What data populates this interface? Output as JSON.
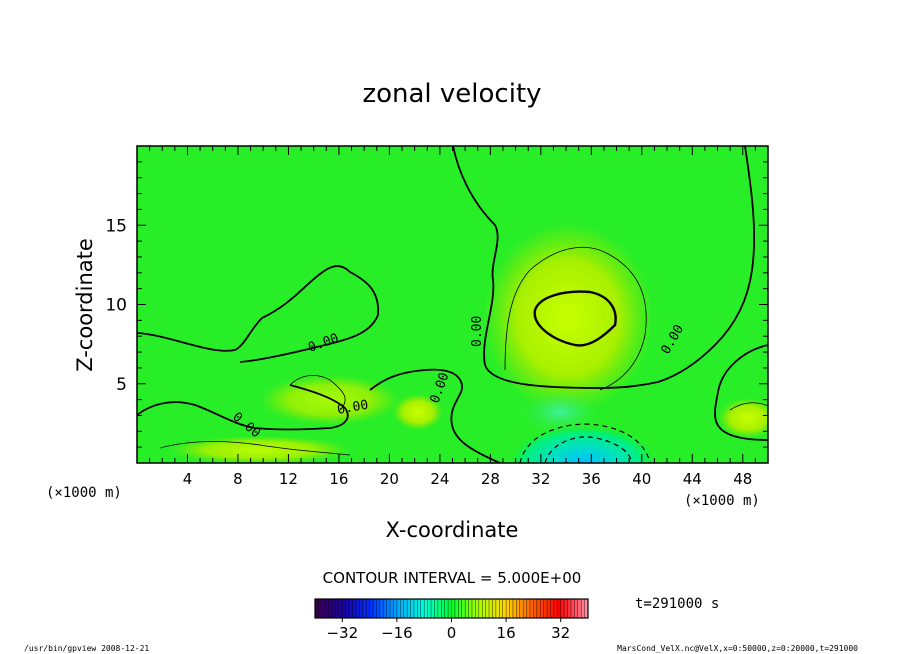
{
  "chart_data": {
    "type": "heatmap",
    "title": "zonal velocity",
    "xlabel": "X-coordinate",
    "ylabel": "Z-coordinate",
    "x_unit": "(×1000 m)",
    "y_unit": "(×1000 m)",
    "xlim": [
      0,
      50
    ],
    "ylim": [
      0,
      20
    ],
    "x_ticks": [
      4,
      8,
      12,
      16,
      20,
      24,
      28,
      32,
      36,
      40,
      44,
      48
    ],
    "y_ticks": [
      5,
      10,
      15
    ],
    "contour_interval_text": "CONTOUR INTERVAL = 5.000E+00",
    "contour_labels": [
      "0.00",
      "0.00",
      "0.00",
      "0.00",
      "0.00",
      "0.00"
    ],
    "time_label": "t=291000 s",
    "colorbar": {
      "range": [
        -40,
        40
      ],
      "ticks": [
        -32,
        -16,
        0,
        16,
        32
      ],
      "colors": [
        "#3a0050",
        "#1a00a0",
        "#0030ff",
        "#00a8ff",
        "#00ffd8",
        "#00ff30",
        "#a8ff00",
        "#ffd800",
        "#ff6000",
        "#ff0000",
        "#ff8aa0"
      ]
    },
    "footer_left": "/usr/bin/gpview   2008-12-21",
    "footer_right": "MarsCond_VelX.nc@VelX,x=0:50000,z=0:20000,t=291000"
  }
}
